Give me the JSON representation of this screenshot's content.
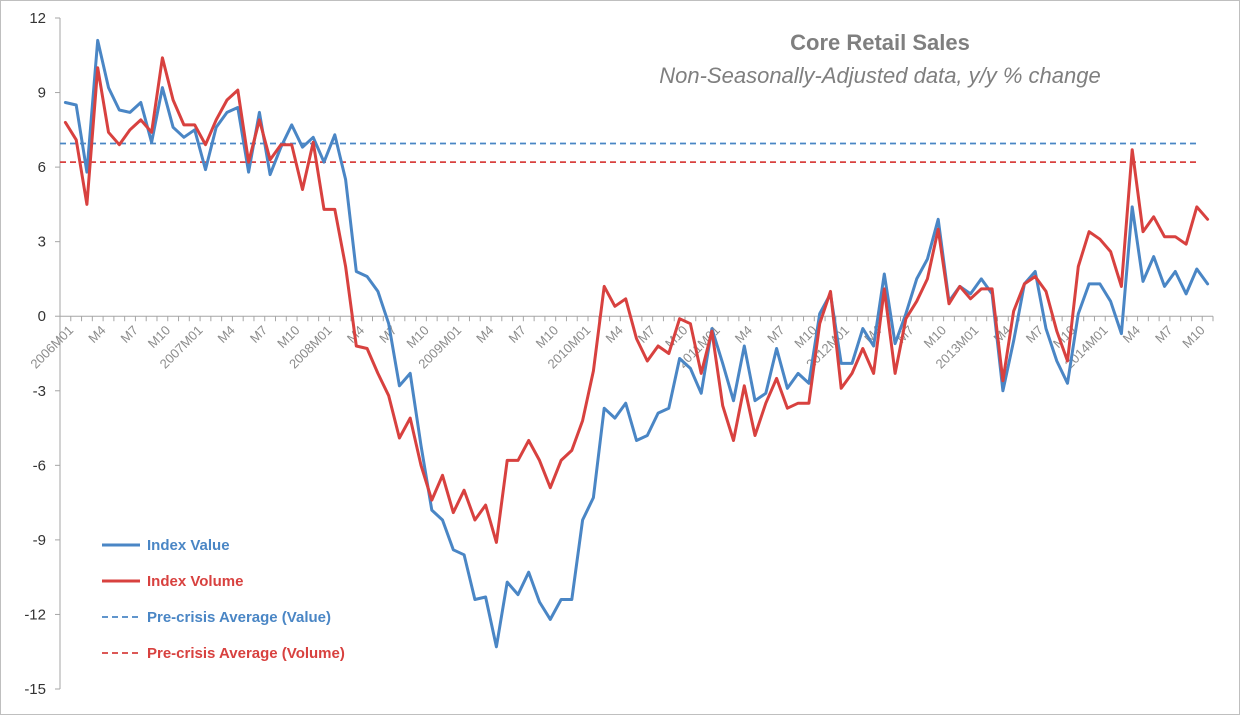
{
  "chart_data": {
    "type": "line",
    "title": "Core Retail Sales",
    "subtitle": "Non-Seasonally-Adjusted data, y/y % change",
    "ylim": [
      -15,
      12
    ],
    "yticks": [
      12,
      9,
      6,
      3,
      0,
      -3,
      -6,
      -9,
      -12,
      -15
    ],
    "x_tick_labels": [
      "2006M01",
      "M4",
      "M7",
      "M10",
      "2007M01",
      "M4",
      "M7",
      "M10",
      "2008M01",
      "M4",
      "M7",
      "M10",
      "2009M01",
      "M4",
      "M7",
      "M10",
      "2010M01",
      "M4",
      "M7",
      "M10",
      "2011M01",
      "M4",
      "M7",
      "M10",
      "2012M01",
      "M4",
      "M7",
      "M10",
      "2013M01",
      "M4",
      "M7",
      "M10",
      "2014M01",
      "M4",
      "M7",
      "M10"
    ],
    "grid": false,
    "legend_position": "bottom-left",
    "series": [
      {
        "name": "Index Value",
        "color": "#4a86c5",
        "style": "solid",
        "values": [
          8.6,
          8.5,
          5.8,
          11.1,
          9.2,
          8.3,
          8.2,
          8.6,
          7.0,
          9.2,
          7.6,
          7.2,
          7.5,
          5.9,
          7.6,
          8.2,
          8.4,
          5.8,
          8.2,
          5.7,
          6.8,
          7.7,
          6.8,
          7.2,
          6.2,
          7.3,
          5.5,
          1.8,
          1.6,
          1.0,
          -0.3,
          -2.8,
          -2.3,
          -5.2,
          -7.8,
          -8.2,
          -9.4,
          -9.6,
          -11.4,
          -11.3,
          -13.3,
          -10.7,
          -11.2,
          -10.3,
          -11.5,
          -12.2,
          -11.4,
          -11.4,
          -8.2,
          -7.3,
          -3.7,
          -4.1,
          -3.5,
          -5.0,
          -4.8,
          -3.9,
          -3.7,
          -1.7,
          -2.1,
          -3.1,
          -0.5,
          -1.9,
          -3.4,
          -1.2,
          -3.4,
          -3.1,
          -1.3,
          -2.9,
          -2.3,
          -2.7,
          0.1,
          0.9,
          -1.9,
          -1.9,
          -0.5,
          -1.2,
          1.7,
          -1.1,
          0.1,
          1.5,
          2.3,
          3.9,
          0.6,
          1.2,
          0.9,
          1.5,
          0.9,
          -3.0,
          -1.0,
          1.3,
          1.8,
          -0.5,
          -1.8,
          -2.7,
          0.1,
          1.3,
          1.3,
          0.6,
          -0.7,
          4.4,
          1.4,
          2.4,
          1.2,
          1.8,
          0.9,
          1.9,
          1.3
        ]
      },
      {
        "name": "Index Volume",
        "color": "#d8413f",
        "style": "solid",
        "values": [
          7.8,
          7.1,
          4.5,
          10.0,
          7.4,
          6.9,
          7.5,
          7.9,
          7.4,
          10.4,
          8.7,
          7.7,
          7.7,
          6.9,
          7.9,
          8.7,
          9.1,
          6.2,
          7.9,
          6.3,
          6.9,
          6.9,
          5.1,
          7.0,
          4.3,
          4.3,
          2.0,
          -1.2,
          -1.3,
          -2.3,
          -3.2,
          -4.9,
          -4.1,
          -6.0,
          -7.4,
          -6.4,
          -7.9,
          -7.0,
          -8.2,
          -7.6,
          -9.1,
          -5.8,
          -5.8,
          -5.0,
          -5.8,
          -6.9,
          -5.8,
          -5.4,
          -4.2,
          -2.2,
          1.2,
          0.4,
          0.7,
          -0.9,
          -1.8,
          -1.2,
          -1.5,
          -0.1,
          -0.3,
          -2.3,
          -0.6,
          -3.6,
          -5.0,
          -2.8,
          -4.8,
          -3.5,
          -2.5,
          -3.7,
          -3.5,
          -3.5,
          -0.3,
          1.0,
          -2.9,
          -2.3,
          -1.3,
          -2.3,
          1.1,
          -2.3,
          -0.1,
          0.6,
          1.5,
          3.5,
          0.5,
          1.2,
          0.7,
          1.1,
          1.1,
          -2.6,
          0.2,
          1.3,
          1.6,
          1.0,
          -0.6,
          -1.8,
          2.0,
          3.4,
          3.1,
          2.6,
          1.2,
          6.7,
          3.4,
          4.0,
          3.2,
          3.2,
          2.9,
          4.4,
          3.9
        ]
      },
      {
        "name": "Pre-crisis Average (Value)",
        "color": "#4a86c5",
        "style": "dashed",
        "constant": 6.95
      },
      {
        "name": "Pre-crisis Average (Volume)",
        "color": "#d8413f",
        "style": "dashed",
        "constant": 6.2
      }
    ]
  }
}
